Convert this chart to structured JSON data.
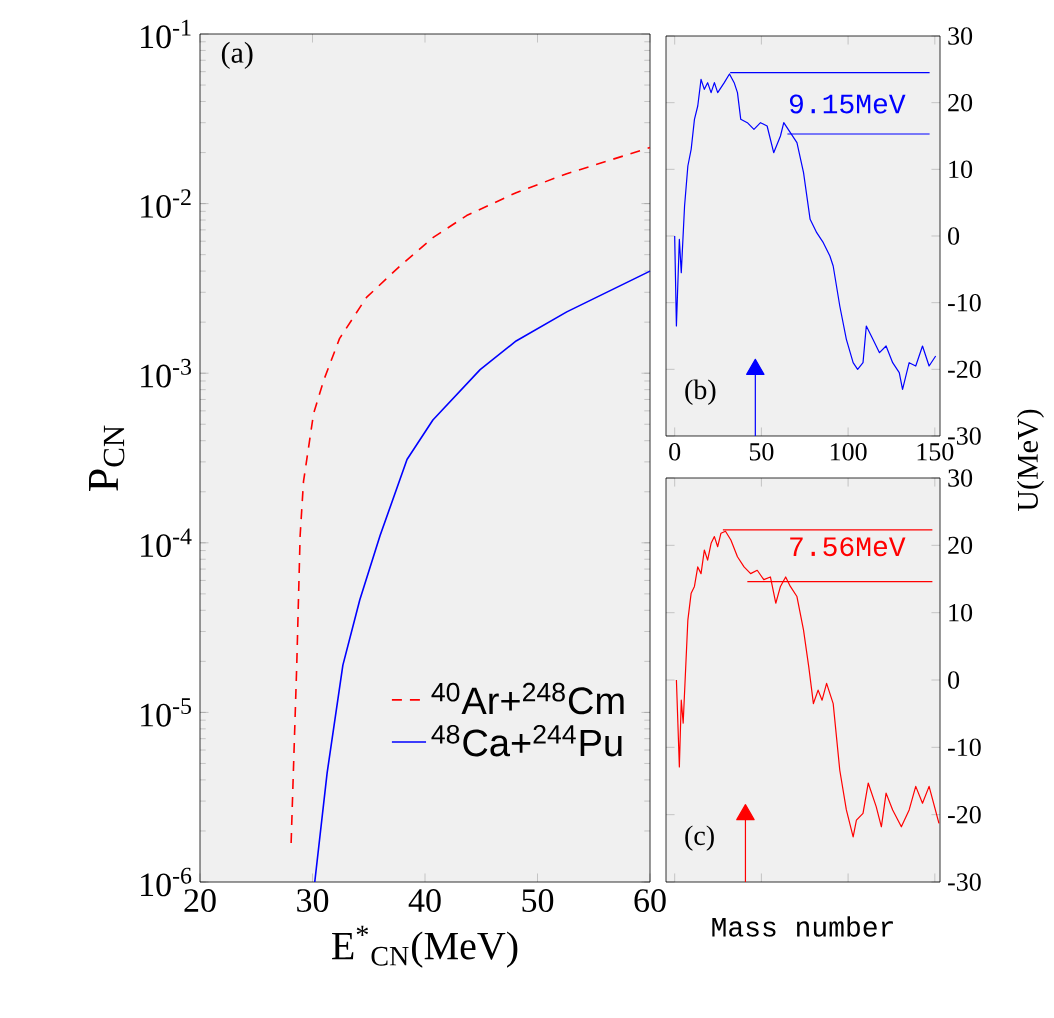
{
  "chart_data": [
    {
      "type": "line",
      "title": "(a)",
      "xlabel": "E$^{*}$$_{CN}$(MeV)",
      "ylabel": "P$_{CN}$",
      "log": "y",
      "legend": "bottom right",
      "marker": "none",
      "xlim": [
        20,
        60
      ],
      "ylim": [
        1e-06,
        0.1
      ],
      "xticks": [
        20,
        30,
        40,
        50,
        60
      ],
      "yticks": [
        {
          "value": 1e-06,
          "label": "10$^{-6}$"
        },
        {
          "value": 1e-05,
          "label": "10$^{-5}$"
        },
        {
          "value": 0.0001,
          "label": "10$^{-4}$"
        },
        {
          "value": 0.001,
          "label": "10$^{-3}$"
        },
        {
          "value": 0.01,
          "label": "10$^{-2}$"
        },
        {
          "value": 0.1,
          "label": "10$^{-1}$"
        }
      ],
      "series": [
        {
          "name": "$^{40}$Ar+$^{248}$Cm",
          "color": "#ff0000",
          "line_style": "dashed",
          "x": [
            28.1,
            28.6,
            28.9,
            29.2,
            30.1,
            31.0,
            32.4,
            34.8,
            37.8,
            40.7,
            43.7,
            48.1,
            52.6,
            60
          ],
          "values": [
            1.7e-06,
            1.9e-05,
            0.00011,
            0.00023,
            0.00058,
            0.00091,
            0.0016,
            0.0028,
            0.0043,
            0.0063,
            0.0085,
            0.0116,
            0.015,
            0.0214
          ]
        },
        {
          "name": "$^{48}$Ca+$^{244}$Pu",
          "color": "#0000ff",
          "line_style": "solid",
          "x": [
            30.2,
            31.3,
            32.7,
            34.2,
            36.0,
            38.4,
            40.7,
            44.9,
            48.1,
            52.6,
            60
          ],
          "values": [
            1e-06,
            4.4e-06,
            1.9e-05,
            4.6e-05,
            0.00011,
            0.00031,
            0.00053,
            0.00105,
            0.00155,
            0.0023,
            0.004
          ]
        }
      ]
    },
    {
      "type": "line",
      "title": "(b)",
      "ylabel": "U(MeV)",
      "xlim": [
        -5,
        153
      ],
      "ylim": [
        -30,
        30
      ],
      "xticks": [
        0,
        50,
        100,
        150
      ],
      "yticks": [
        -30,
        -20,
        -10,
        0,
        10,
        20,
        30
      ],
      "annotations": [
        "9.15MeV"
      ],
      "series": [
        {
          "color": "#0000ff",
          "x": [
            0,
            1,
            2.7,
            3.8,
            5.7,
            7.6,
            9.5,
            11.4,
            13.3,
            15.2,
            17.1,
            19,
            21,
            22.9,
            24.8,
            28.6,
            31.6,
            34.3,
            36.2,
            38.1,
            41.9,
            45.7,
            49.5,
            53.3,
            57.1,
            61,
            62.9,
            66.7,
            70.5,
            74.3,
            78.1,
            81.9,
            85.7,
            89.5,
            91.4,
            95.2,
            99,
            102.9,
            105.5,
            108.6,
            110.5,
            114.3,
            118.1,
            121.9,
            125.7,
            129.5,
            131.4,
            135.2,
            139,
            142.9,
            146.7,
            150.5
          ],
          "values": [
            0,
            -13.5,
            -0.5,
            -5.5,
            4.5,
            10.5,
            13,
            17.5,
            19.5,
            23.5,
            22,
            23,
            21.5,
            23,
            21.5,
            23,
            24.3,
            23,
            21.5,
            17.5,
            17,
            16,
            17,
            16.5,
            12.5,
            15,
            17,
            15.5,
            14,
            9.5,
            2.5,
            0.5,
            -1,
            -3,
            -4.5,
            -10.5,
            -15.5,
            -19,
            -20,
            -19,
            -13.5,
            -15.5,
            -17.5,
            -16.5,
            -19,
            -20.5,
            -23,
            -19,
            -19.5,
            -16.5,
            -19.5,
            -18
          ]
        },
        {
          "color": "#0000ff",
          "x": [
            32,
            147
          ],
          "values": [
            24.5,
            24.5
          ]
        },
        {
          "color": "#0000ff",
          "x": [
            65,
            147
          ],
          "values": [
            15.3,
            15.3
          ]
        },
        {
          "color": "#0000ff",
          "marker": "triangle",
          "x": [
            46.5,
            46.5
          ],
          "values": [
            -30,
            -20
          ]
        }
      ]
    },
    {
      "type": "line",
      "title": "(c)",
      "xlabel": "Mass number",
      "tick_labels": "y",
      "xlim": [
        -5,
        153
      ],
      "ylim": [
        -30,
        30
      ],
      "xticks": [
        0,
        50,
        100,
        150
      ],
      "yticks": [
        -30,
        -20,
        -10,
        0,
        10,
        20,
        30
      ],
      "annotations": [
        "7.56MeV"
      ],
      "series": [
        {
          "color": "#ff0000",
          "x": [
            1,
            2.7,
            3.8,
            4.9,
            7.6,
            9.5,
            11.4,
            13.3,
            15.2,
            17.1,
            19,
            21,
            22.9,
            24.8,
            26.7,
            29.3,
            32.4,
            36.2,
            40,
            43.8,
            47.6,
            51.4,
            55.2,
            58.3,
            61,
            64,
            66.7,
            70.5,
            74.3,
            77.3,
            80,
            82.7,
            85,
            87.6,
            91.4,
            95.2,
            99,
            102.9,
            104.8,
            108.6,
            111.6,
            116.2,
            119.2,
            121.9,
            125.7,
            130.7,
            135.2,
            139,
            142.9,
            146.7,
            152.4
          ],
          "values": [
            0,
            -12.9,
            -3,
            -6.4,
            8.9,
            12.9,
            13.9,
            16.8,
            15.8,
            19.3,
            17.8,
            20.3,
            21.3,
            19.8,
            21.8,
            22.1,
            20.8,
            18.3,
            16.8,
            15.8,
            16.3,
            14.9,
            15.3,
            11.4,
            13.9,
            15.3,
            13.9,
            12.4,
            7.4,
            2,
            -3.5,
            -1.5,
            -3,
            -0.5,
            -3.5,
            -13.4,
            -19.3,
            -23.3,
            -20.8,
            -19.8,
            -15.3,
            -18.8,
            -21.8,
            -16.8,
            -19.3,
            -21.8,
            -19.3,
            -15.8,
            -18.3,
            -15.8,
            -21.3
          ]
        },
        {
          "color": "#ff0000",
          "x": [
            27.8,
            148.6
          ],
          "values": [
            22.3,
            22.3
          ]
        },
        {
          "color": "#ff0000",
          "x": [
            41.9,
            148.6
          ],
          "values": [
            14.6,
            14.6
          ]
        },
        {
          "color": "#ff0000",
          "marker": "triangle",
          "x": [
            40.8,
            40.8
          ],
          "values": [
            -30,
            -20
          ]
        }
      ]
    }
  ]
}
